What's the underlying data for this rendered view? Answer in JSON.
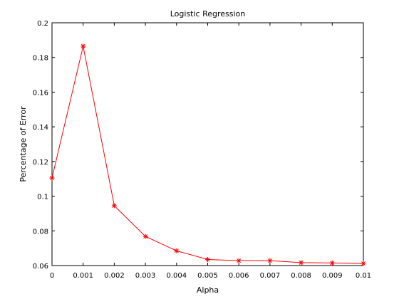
{
  "chart_data": {
    "type": "line",
    "title": "Logistic Regression",
    "xlabel": "Alpha",
    "ylabel": "Percentage of Error",
    "xlim": [
      0,
      0.01
    ],
    "ylim": [
      0.06,
      0.2
    ],
    "x_ticks": [
      "0",
      "0.001",
      "0.002",
      "0.003",
      "0.004",
      "0.005",
      "0.006",
      "0.007",
      "0.008",
      "0.009",
      "0.01"
    ],
    "y_ticks": [
      "0.06",
      "0.08",
      "0.1",
      "0.12",
      "0.14",
      "0.16",
      "0.18",
      "0.2"
    ],
    "grid": false,
    "series": [
      {
        "color": "#ff0000",
        "marker": "asterisk",
        "x": [
          0,
          0.001,
          0.002,
          0.003,
          0.004,
          0.005,
          0.006,
          0.007,
          0.008,
          0.009,
          0.01
        ],
        "y": [
          0.1105,
          0.1865,
          0.0945,
          0.0768,
          0.0685,
          0.0635,
          0.0628,
          0.0628,
          0.0617,
          0.0615,
          0.0612
        ]
      }
    ]
  }
}
